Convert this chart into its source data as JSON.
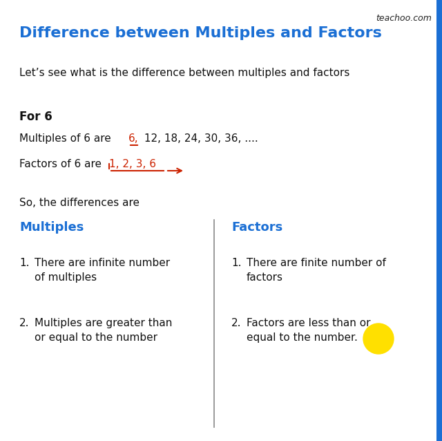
{
  "title": "Difference between Multiples and Factors",
  "title_color": "#1B6FD4",
  "title_fontsize": 16,
  "watermark": "teachoo.com",
  "watermark_color": "#222222",
  "bg_color": "#FFFFFF",
  "intro_text": "Let’s see what is the difference between multiples and factors",
  "for_label": "For 6",
  "multiples_prefix": "Multiples of 6 are ",
  "multiples_highlighted": "6,",
  "multiples_rest": " 12, 18, 24, 30, 36, ....",
  "factors_prefix": "Factors of 6 are ",
  "factors_highlighted": "1, 2, 3, 6",
  "so_text": "So, the differences are",
  "col1_header": "Multiples",
  "col2_header": "Factors",
  "header_color": "#1B6FD4",
  "col1_item1_num": "1.",
  "col1_item1_text": "There are infinite number\n    of multiples",
  "col1_item2_num": "2.",
  "col1_item2_text": "Multiples are greater than\n    or equal to the number",
  "col2_item1_num": "1.",
  "col2_item1_text": "There are finite number of\n    factors",
  "col2_item2_num": "2.",
  "col2_item2_text": "Factors are less than or\n    equal to the number.",
  "sidebar_color": "#1B6FD4",
  "red_color": "#CC2200",
  "yellow_color": "#FFE000",
  "text_color": "#111111"
}
